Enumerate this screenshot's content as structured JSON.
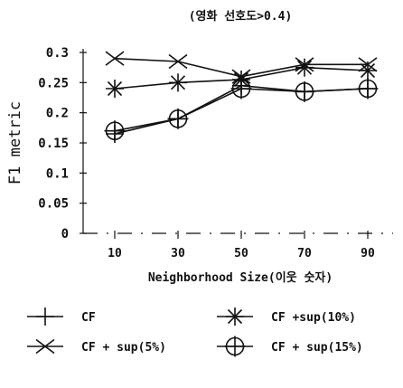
{
  "chart_data": {
    "type": "line",
    "title": "(영화 선호도>0.4)",
    "xlabel": "Neighborhood Size(이웃 숫자)",
    "ylabel": "F1 metric",
    "categories": [
      "10",
      "30",
      "50",
      "70",
      "90"
    ],
    "yticks": [
      "0",
      "0.05",
      "0.1",
      "0.15",
      "0.2",
      "0.25",
      "0.3"
    ],
    "ylim": [
      0,
      0.3
    ],
    "grid": false,
    "legend_position": "bottom",
    "series": [
      {
        "name": "CF",
        "marker": "plus-icon",
        "values": [
          0.165,
          0.19,
          0.245,
          0.235,
          0.24
        ]
      },
      {
        "name": "CF +sup(10%)",
        "marker": "asterisk-icon",
        "values": [
          0.24,
          0.25,
          0.255,
          0.275,
          0.27
        ]
      },
      {
        "name": "CF + sup(5%)",
        "marker": "x-cross-icon",
        "values": [
          0.29,
          0.285,
          0.26,
          0.28,
          0.28
        ]
      },
      {
        "name": "CF + sup(15%)",
        "marker": "circle-bar-icon",
        "values": [
          0.17,
          0.19,
          0.24,
          0.235,
          0.24
        ]
      }
    ],
    "colors": {
      "line": "#111111",
      "background": "#ffffff"
    }
  }
}
